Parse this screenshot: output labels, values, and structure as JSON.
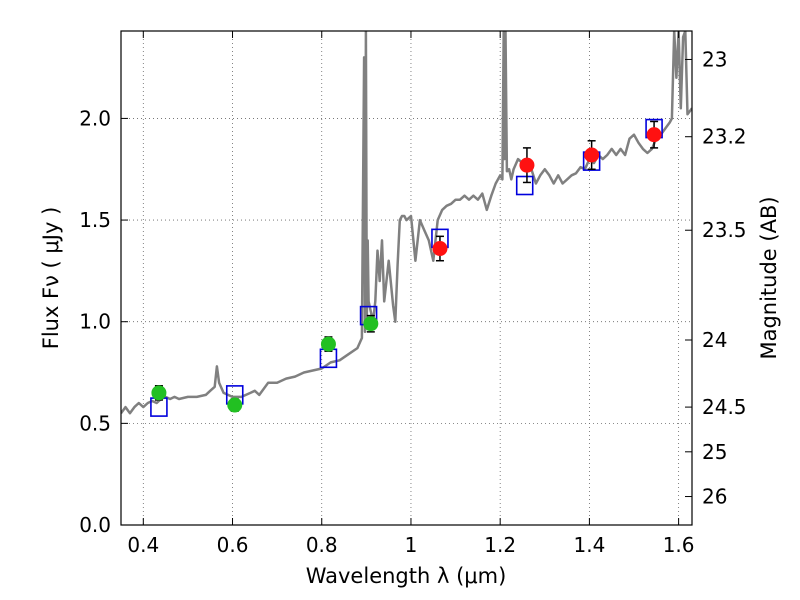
{
  "chart_data": {
    "type": "scatter",
    "xlabel": "Wavelength  λ (μm)",
    "ylabel": "Flux  Fν  ( μJy )",
    "y2label": "Magnitude (AB)",
    "xlim": [
      0.35,
      1.63
    ],
    "ylim": [
      0.0,
      2.43
    ],
    "grid": true,
    "x_ticks": [
      0.4,
      0.6,
      0.8,
      1.0,
      1.2,
      1.4,
      1.6
    ],
    "x_tick_labels": [
      "0.4",
      "0.6",
      "0.8",
      "1",
      "1.2",
      "1.4",
      "1.6"
    ],
    "y_ticks": [
      0.0,
      0.5,
      1.0,
      1.5,
      2.0
    ],
    "y_tick_labels": [
      "0.0",
      "0.5",
      "1.0",
      "1.5",
      "2.0"
    ],
    "y2_ticks": [
      {
        "label": "23",
        "flux": 2.29
      },
      {
        "label": "23.2",
        "flux": 1.91
      },
      {
        "label": "23.5",
        "flux": 1.45
      },
      {
        "label": "24",
        "flux": 0.91
      },
      {
        "label": "24.5",
        "flux": 0.58
      },
      {
        "label": "25",
        "flux": 0.36
      },
      {
        "label": "26",
        "flux": 0.14
      }
    ],
    "colors": {
      "model": "#808080",
      "optical": "#22c022",
      "nir": "#ff1111",
      "model_box": "#0000dd",
      "errorbar": "#000000",
      "grid": "#666666"
    },
    "series": [
      {
        "name": "model spectrum",
        "type": "line",
        "x": [
          0.35,
          0.36,
          0.37,
          0.38,
          0.39,
          0.4,
          0.41,
          0.42,
          0.43,
          0.44,
          0.45,
          0.46,
          0.47,
          0.48,
          0.5,
          0.52,
          0.54,
          0.55,
          0.56,
          0.565,
          0.57,
          0.58,
          0.6,
          0.62,
          0.64,
          0.65,
          0.66,
          0.68,
          0.7,
          0.72,
          0.74,
          0.76,
          0.78,
          0.8,
          0.82,
          0.84,
          0.86,
          0.88,
          0.89,
          0.895,
          0.897,
          0.899,
          0.901,
          0.903,
          0.905,
          0.91,
          0.915,
          0.92,
          0.925,
          0.93,
          0.935,
          0.94,
          0.95,
          0.96,
          0.965,
          0.97,
          0.975,
          0.98,
          0.985,
          0.99,
          1.0,
          1.01,
          1.02,
          1.03,
          1.04,
          1.05,
          1.06,
          1.07,
          1.08,
          1.09,
          1.1,
          1.11,
          1.12,
          1.13,
          1.14,
          1.15,
          1.16,
          1.17,
          1.18,
          1.19,
          1.2,
          1.205,
          1.208,
          1.21,
          1.212,
          1.215,
          1.22,
          1.225,
          1.23,
          1.24,
          1.25,
          1.26,
          1.27,
          1.28,
          1.29,
          1.3,
          1.31,
          1.32,
          1.33,
          1.34,
          1.35,
          1.36,
          1.37,
          1.38,
          1.39,
          1.4,
          1.41,
          1.42,
          1.43,
          1.44,
          1.45,
          1.46,
          1.47,
          1.48,
          1.49,
          1.5,
          1.51,
          1.52,
          1.53,
          1.54,
          1.55,
          1.56,
          1.57,
          1.58,
          1.585,
          1.59,
          1.595,
          1.6,
          1.605,
          1.61,
          1.615,
          1.62,
          1.63
        ],
        "y": [
          0.55,
          0.58,
          0.55,
          0.58,
          0.6,
          0.58,
          0.6,
          0.61,
          0.6,
          0.62,
          0.63,
          0.62,
          0.63,
          0.62,
          0.63,
          0.63,
          0.64,
          0.66,
          0.68,
          0.78,
          0.7,
          0.65,
          0.63,
          0.63,
          0.65,
          0.66,
          0.64,
          0.7,
          0.7,
          0.72,
          0.73,
          0.75,
          0.76,
          0.77,
          0.8,
          0.81,
          0.84,
          0.87,
          0.92,
          2.3,
          0.95,
          2.43,
          1.0,
          1.4,
          1.1,
          1.05,
          1.0,
          1.1,
          1.35,
          1.2,
          1.4,
          1.1,
          1.3,
          1.08,
          1.0,
          1.28,
          1.5,
          1.52,
          1.52,
          1.5,
          1.52,
          1.3,
          1.5,
          1.45,
          1.4,
          1.3,
          1.5,
          1.55,
          1.57,
          1.58,
          1.6,
          1.6,
          1.62,
          1.6,
          1.62,
          1.6,
          1.63,
          1.55,
          1.62,
          1.68,
          1.72,
          1.7,
          2.43,
          1.8,
          2.43,
          1.74,
          1.75,
          1.7,
          1.75,
          1.8,
          1.78,
          1.78,
          1.75,
          1.68,
          1.72,
          1.75,
          1.72,
          1.68,
          1.72,
          1.68,
          1.7,
          1.72,
          1.73,
          1.76,
          1.75,
          1.8,
          1.78,
          1.82,
          1.8,
          1.82,
          1.85,
          1.82,
          1.85,
          1.82,
          1.9,
          1.92,
          1.88,
          1.85,
          1.83,
          1.85,
          1.9,
          1.92,
          1.95,
          1.98,
          2.0,
          2.43,
          2.2,
          2.43,
          2.05,
          2.4,
          2.43,
          2.02,
          2.05
        ]
      },
      {
        "name": "model photometry",
        "type": "box",
        "x": [
          0.435,
          0.605,
          0.815,
          0.905,
          1.065,
          1.255,
          1.405,
          1.545
        ],
        "y": [
          0.58,
          0.64,
          0.82,
          1.03,
          1.41,
          1.67,
          1.79,
          1.95
        ]
      },
      {
        "name": "optical photometry",
        "type": "scatter",
        "x": [
          0.435,
          0.605,
          0.815,
          0.91
        ],
        "y": [
          0.65,
          0.59,
          0.89,
          0.99
        ],
        "yerr": [
          0.035,
          0.03,
          0.035,
          0.04
        ]
      },
      {
        "name": "near-IR photometry",
        "type": "scatter",
        "x": [
          1.065,
          1.26,
          1.405,
          1.545
        ],
        "y": [
          1.36,
          1.77,
          1.82,
          1.92
        ],
        "yerr": [
          0.06,
          0.085,
          0.07,
          0.065
        ]
      }
    ]
  }
}
